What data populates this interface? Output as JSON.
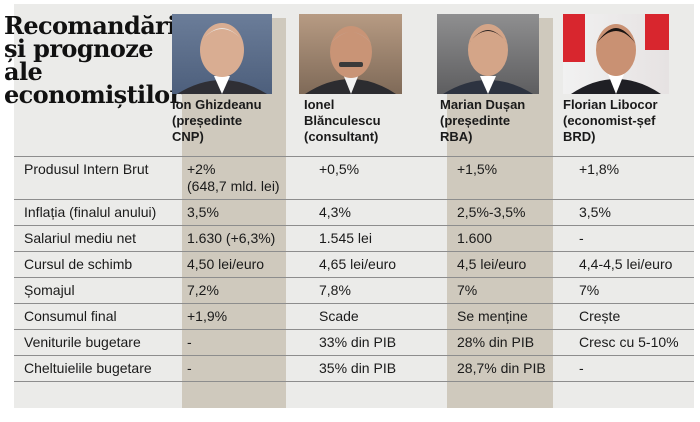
{
  "title": {
    "lines": [
      "Recomandări",
      "și prognoze",
      "ale",
      "economiștilor"
    ]
  },
  "experts": [
    {
      "name": "Ion Ghizdeanu\n(președinte\nCNP)"
    },
    {
      "name": "Ionel\nBlănculescu\n(consultant)"
    },
    {
      "name": "Marian Dușan\n(președinte\nRBA)"
    },
    {
      "name": "Florian Libocor\n(economist-șef\nBRD)"
    }
  ],
  "rows": [
    {
      "label": "Produsul Intern Brut",
      "values": [
        "+2%\n(648,7 mld. lei)",
        "+0,5%",
        "+1,5%",
        "+1,8%"
      ]
    },
    {
      "label": "Inflația (finalul anului)",
      "values": [
        "3,5%",
        "4,3%",
        "2,5%-3,5%",
        "3,5%"
      ]
    },
    {
      "label": "Salariul mediu net",
      "values": [
        "1.630 (+6,3%)",
        "1.545 lei",
        "1.600",
        "-"
      ]
    },
    {
      "label": "Cursul de schimb",
      "values": [
        "4,50 lei/euro",
        "4,65 lei/euro",
        "4,5 lei/euro",
        "4,4-4,5 lei/euro"
      ]
    },
    {
      "label": "Șomajul",
      "values": [
        "7,2%",
        "7,8%",
        "7%",
        "7%"
      ]
    },
    {
      "label": "Consumul final",
      "values": [
        "+1,9%",
        "Scade",
        "Se menține",
        "Crește"
      ]
    },
    {
      "label": "Veniturile bugetare",
      "values": [
        "-",
        "33% din PIB",
        "28% din PIB",
        "Cresc cu 5-10%"
      ]
    },
    {
      "label": "Cheltuielile bugetare",
      "values": [
        "-",
        "35% din PIB",
        "28,7% din PIB",
        "-"
      ]
    }
  ],
  "colors": {
    "sheet": "#ebebe9",
    "highlight_column": "#cfc9bd",
    "rule": "#8d8d8d"
  }
}
